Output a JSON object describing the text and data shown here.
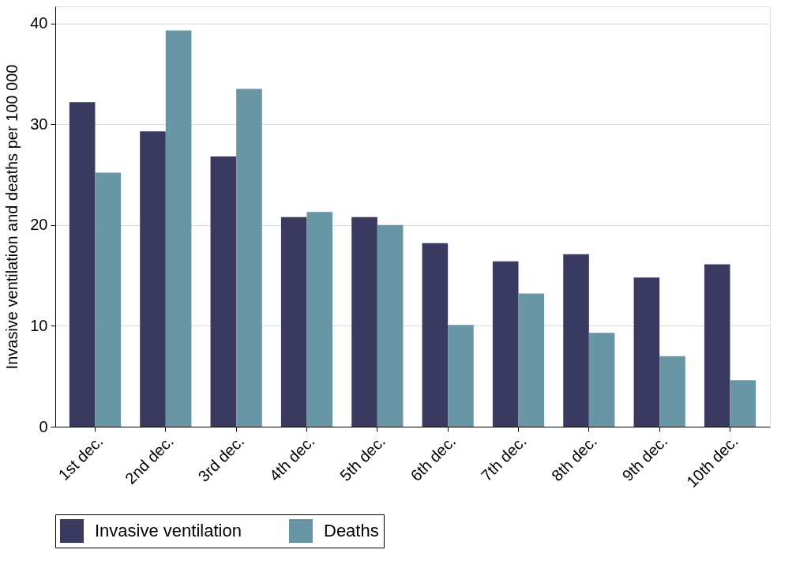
{
  "chart_data": {
    "type": "bar",
    "ylabel": "Invasive ventilation and deaths per 100 000",
    "categories": [
      "1st dec.",
      "2nd dec.",
      "3rd dec.",
      "4th dec.",
      "5th dec.",
      "6th dec.",
      "7th dec.",
      "8th dec.",
      "9th dec.",
      "10th dec."
    ],
    "series": [
      {
        "name": "Invasive ventilation",
        "color": "#3a3a61",
        "values": [
          32.2,
          29.3,
          26.8,
          20.8,
          20.8,
          18.2,
          16.4,
          17.1,
          14.8,
          16.1
        ]
      },
      {
        "name": "Deaths",
        "color": "#6896a5",
        "values": [
          25.2,
          39.3,
          33.5,
          21.3,
          20.0,
          10.1,
          13.2,
          9.3,
          7.0,
          4.6
        ]
      }
    ],
    "ylim": [
      0,
      41.7
    ],
    "yticks": [
      0,
      10,
      20,
      30,
      40
    ],
    "grid": "y",
    "legend": "bottom"
  }
}
